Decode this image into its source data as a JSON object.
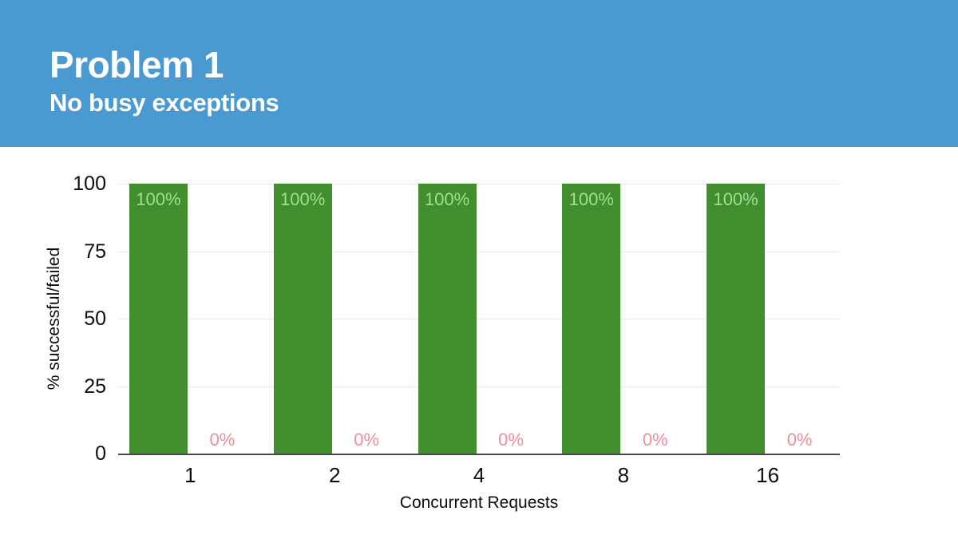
{
  "header": {
    "title": "Problem 1",
    "subtitle": "No busy exceptions",
    "background": "#4a99d1",
    "text_color": "#ffffff"
  },
  "chart_data": {
    "type": "bar",
    "categories": [
      "1",
      "2",
      "4",
      "8",
      "16"
    ],
    "series": [
      {
        "name": "successful",
        "values": [
          100,
          100,
          100,
          100,
          100
        ],
        "labels": [
          "100%",
          "100%",
          "100%",
          "100%",
          "100%"
        ],
        "bar_color": "#418e2f",
        "label_color": "#a3dd92"
      },
      {
        "name": "failed",
        "values": [
          0,
          0,
          0,
          0,
          0
        ],
        "labels": [
          "0%",
          "0%",
          "0%",
          "0%",
          "0%"
        ],
        "bar_color": "#f08b99",
        "label_color": "#f08b99"
      }
    ],
    "xlabel": "Concurrent Requests",
    "ylabel": "% successful/failed",
    "ylim": [
      0,
      100
    ],
    "yticks": [
      0,
      25,
      50,
      75,
      100
    ],
    "grid": true,
    "legend_position": "none"
  },
  "colors": {
    "gridline": "#e9e9e9",
    "axis_line": "#4a4a4a",
    "tick_text": "#0d0d0d"
  }
}
